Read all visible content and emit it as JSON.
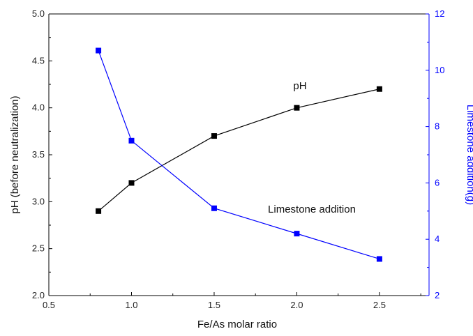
{
  "chart_data": {
    "type": "line",
    "xlabel": "Fe/As molar ratio",
    "ylabel": "pH (before neutralization)",
    "y2label": "Limestone addition(g)",
    "xlim": [
      0.5,
      2.8
    ],
    "ylim": [
      2.0,
      5.0
    ],
    "y2lim": [
      2,
      12
    ],
    "x_ticks": [
      "0.5",
      "1.0",
      "1.5",
      "2.0",
      "2.5"
    ],
    "y_ticks": [
      "2.0",
      "2.5",
      "3.0",
      "3.5",
      "4.0",
      "4.5",
      "5.0"
    ],
    "y2_ticks": [
      "2",
      "4",
      "6",
      "8",
      "10",
      "12"
    ],
    "grid": false,
    "series": [
      {
        "name": "pH",
        "axis": "left",
        "color": "#000000",
        "marker": "square",
        "x": [
          0.8,
          1.0,
          1.5,
          2.0,
          2.5
        ],
        "values": [
          2.9,
          3.2,
          3.7,
          4.0,
          4.2
        ]
      },
      {
        "name": "Limestone addition",
        "axis": "right",
        "color": "#0000ff",
        "marker": "square",
        "x": [
          0.8,
          1.0,
          1.5,
          2.0,
          2.5
        ],
        "values": [
          10.7,
          7.5,
          5.1,
          4.2,
          3.3
        ]
      }
    ],
    "annotations": [
      "pH",
      "Limestone addition"
    ]
  }
}
